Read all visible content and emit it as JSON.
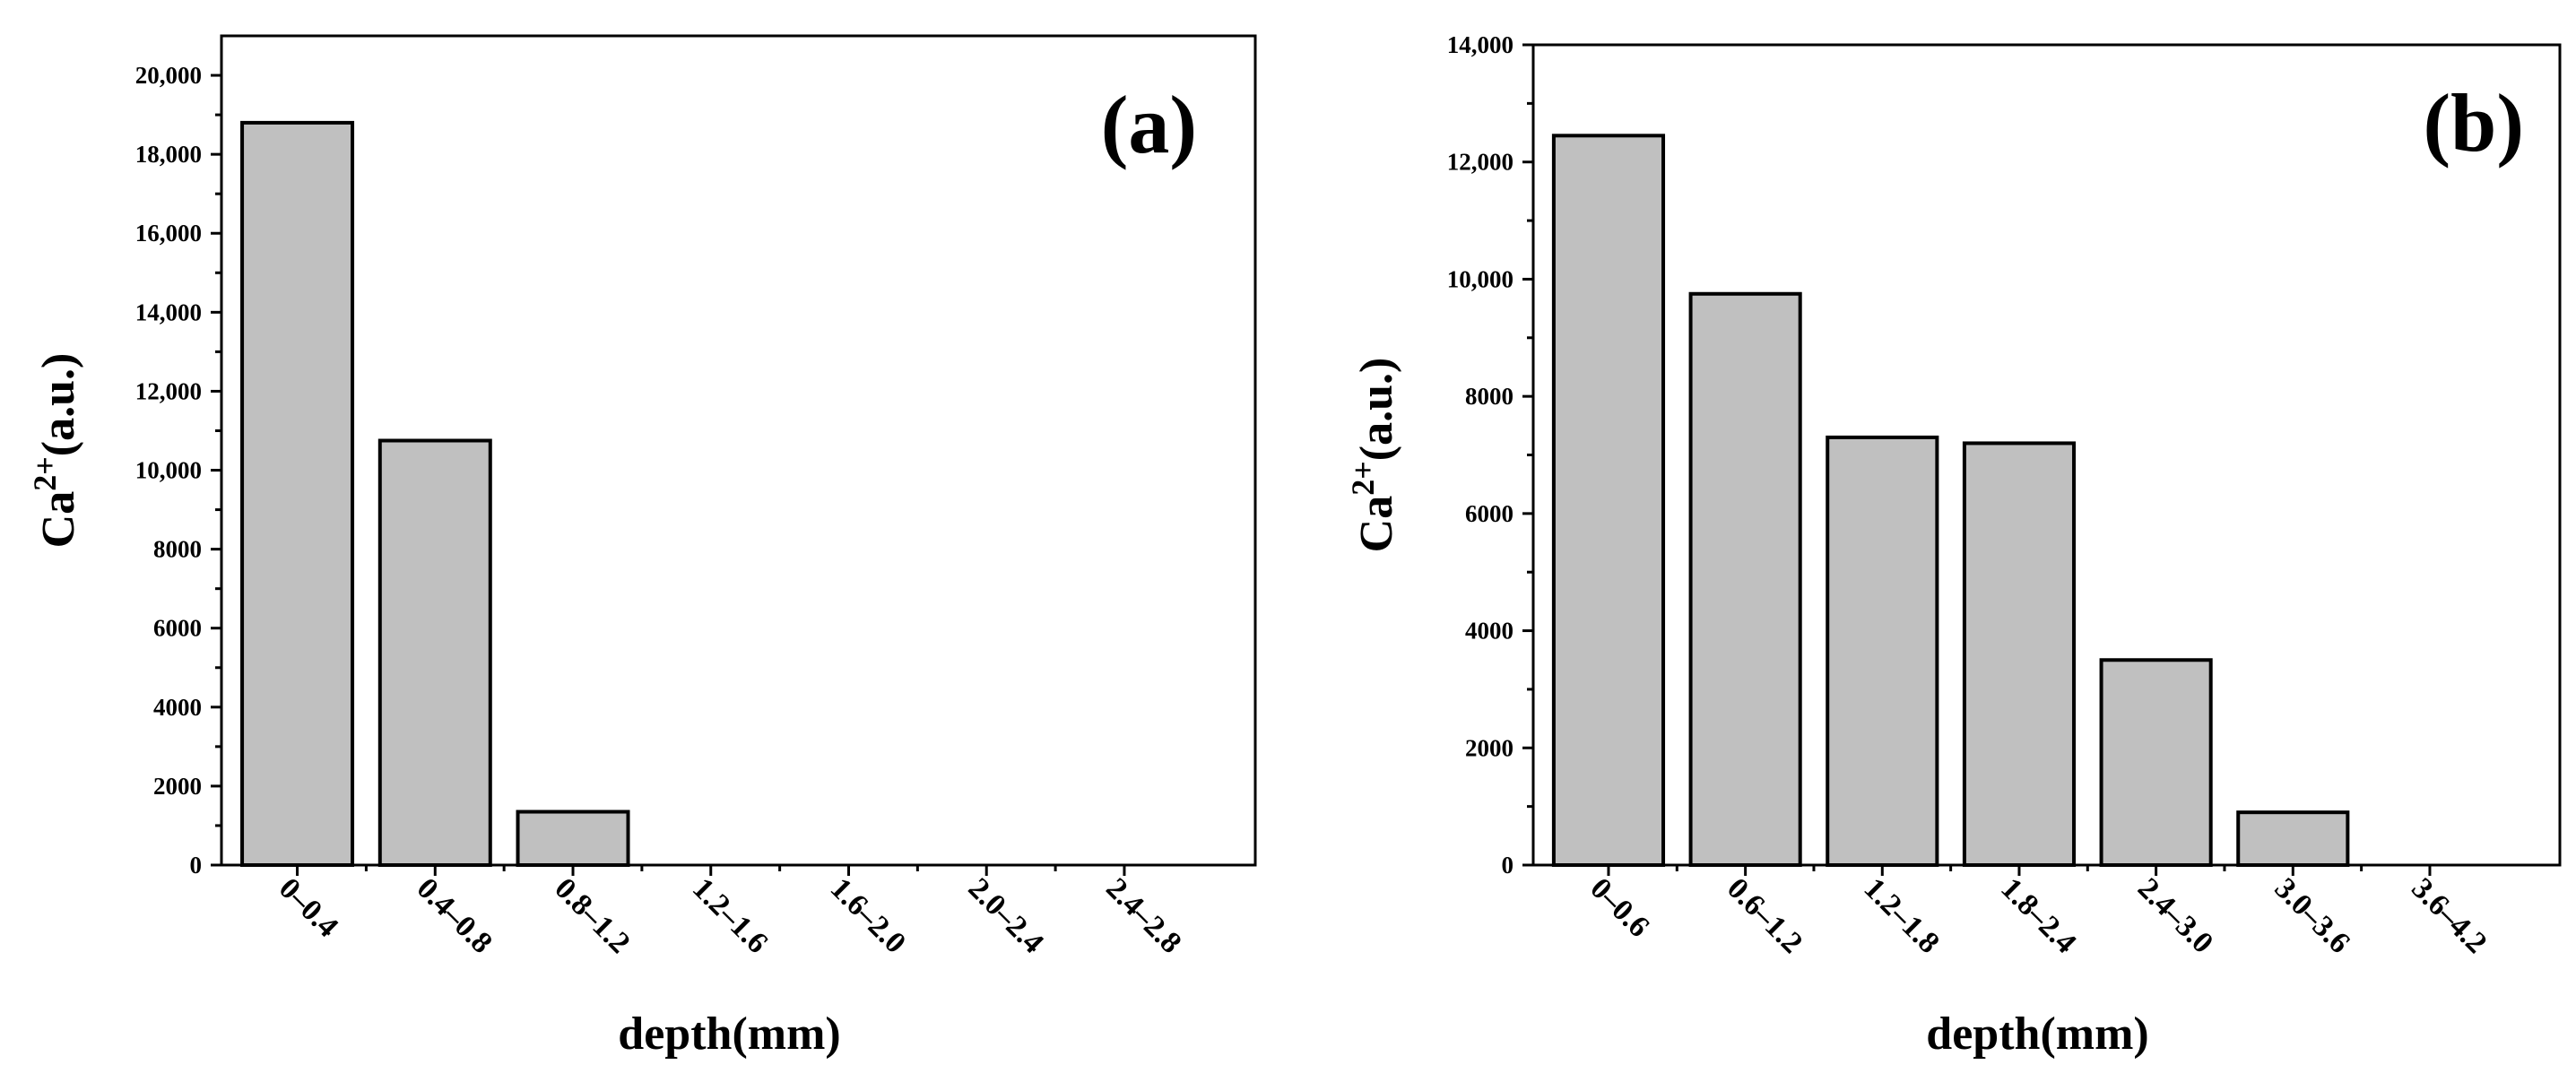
{
  "chart_data": [
    {
      "type": "bar",
      "panel_label": "(a)",
      "xlabel": "depth(mm)",
      "ylabel_base": "Ca",
      "ylabel_sup": "2+",
      "ylabel_unit": "(a.u.)",
      "categories": [
        "0–0.4",
        "0.4–0.8",
        "0.8–1.2",
        "1.2–1.6",
        "1.6–2.0",
        "2.0–2.4",
        "2.4–2.8"
      ],
      "values": [
        18800,
        10750,
        1350,
        0,
        0,
        0,
        0
      ],
      "ylim": [
        0,
        21000
      ],
      "ytick_values": [
        0,
        2000,
        4000,
        6000,
        8000,
        10000,
        12000,
        14000,
        16000,
        18000,
        20000
      ],
      "ytick_labels": [
        "0",
        "2000",
        "4000",
        "6000",
        "8000",
        "10,000",
        "12,000",
        "14,000",
        "16,000",
        "18,000",
        "20,000"
      ],
      "bar_fill": "#c0c0c0",
      "grid": false
    },
    {
      "type": "bar",
      "panel_label": "(b)",
      "xlabel": "depth(mm)",
      "ylabel_base": "Ca",
      "ylabel_sup": "2+",
      "ylabel_unit": "(a.u.)",
      "categories": [
        "0–0.6",
        "0.6–1.2",
        "1.2–1.8",
        "1.8–2.4",
        "2.4–3.0",
        "3.0–3.6",
        "3.6–4.2"
      ],
      "values": [
        12450,
        9750,
        7300,
        7200,
        3500,
        900,
        0
      ],
      "ylim": [
        0,
        14000
      ],
      "ytick_values": [
        0,
        2000,
        4000,
        6000,
        8000,
        10000,
        12000,
        14000
      ],
      "ytick_labels": [
        "0",
        "2000",
        "4000",
        "6000",
        "8000",
        "10,000",
        "12,000",
        "14,000"
      ],
      "bar_fill": "#c0c0c0",
      "grid": false
    }
  ]
}
